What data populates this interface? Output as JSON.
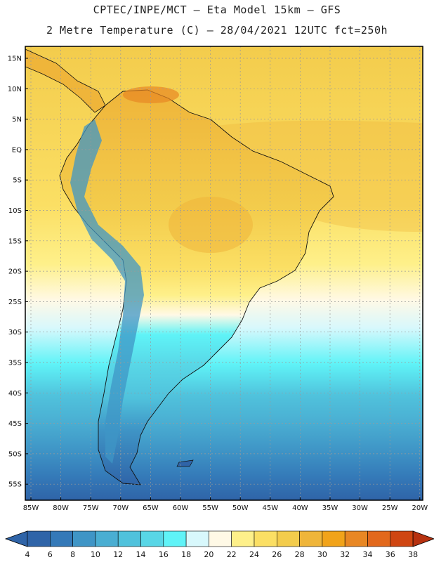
{
  "header": {
    "title_line1": "CPTEC/INPE/MCT –  Eta Model 15km – GFS",
    "title_line2": "2 Metre Temperature (C) – 28/04/2021 12UTC fct=250h"
  },
  "map": {
    "region": "South America",
    "lat_labels": [
      "15N",
      "10N",
      "5N",
      "EQ",
      "5S",
      "10S",
      "15S",
      "20S",
      "25S",
      "30S",
      "35S",
      "40S",
      "45S",
      "50S",
      "55S"
    ],
    "lon_labels": [
      "85W",
      "80W",
      "75W",
      "70W",
      "65W",
      "60W",
      "55W",
      "50W",
      "45W",
      "40W",
      "35W",
      "30W",
      "25W",
      "20W"
    ]
  },
  "colorbar": {
    "ticks": [
      "4",
      "6",
      "8",
      "10",
      "12",
      "14",
      "16",
      "18",
      "20",
      "22",
      "24",
      "26",
      "28",
      "30",
      "32",
      "34",
      "36",
      "38"
    ],
    "colors": [
      "#2f64a8",
      "#3479b8",
      "#3f95c6",
      "#4aaed2",
      "#50c2dc",
      "#58d6e6",
      "#5ff3f7",
      "#d8f8fc",
      "#fff9e6",
      "#fef08a",
      "#fbdf64",
      "#f3cc4c",
      "#efb53a",
      "#f1a31a",
      "#e88724",
      "#e2681c",
      "#cf4612",
      "#b73210"
    ]
  }
}
